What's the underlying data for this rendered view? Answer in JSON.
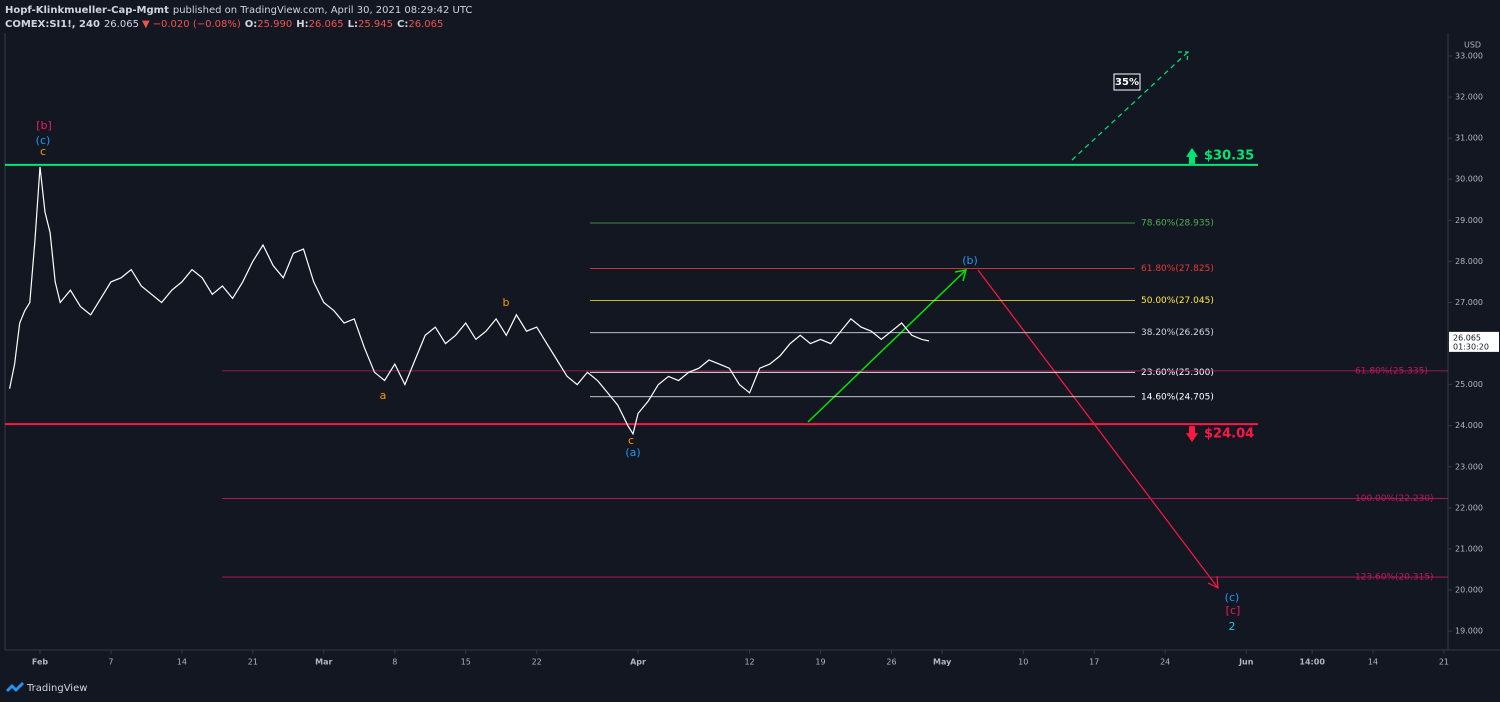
{
  "header": {
    "author": "Hopf-Klinkmueller-Cap-Mgmt",
    "published": "published on TradingView.com, April 30, 2021 08:29:42 UTC",
    "symbol": "COMEX:SI1!, 240",
    "last": "26.065",
    "direction": "▼",
    "change": "−0.020 (−0.08%)",
    "ohlc": [
      {
        "key": "O:",
        "value": "25.990"
      },
      {
        "key": "H:",
        "value": "26.065"
      },
      {
        "key": "L:",
        "value": "25.945"
      },
      {
        "key": "C:",
        "value": "26.065"
      }
    ]
  },
  "chart_data": {
    "type": "line",
    "currency": "USD",
    "color": "#ffffff",
    "x": [
      -3,
      -2.5,
      -2,
      -1.5,
      -1,
      -0.5,
      0,
      0.5,
      1,
      1.5,
      2,
      3,
      4,
      5,
      6,
      7,
      8,
      9,
      10,
      11,
      12,
      13,
      14,
      15,
      16,
      17,
      18,
      19,
      20,
      21,
      22,
      23,
      24,
      25,
      26,
      27,
      28,
      29,
      30,
      31,
      32,
      33,
      34,
      35,
      36,
      37,
      38,
      39,
      40,
      41,
      42,
      43,
      44,
      45,
      46,
      47,
      48,
      49,
      50,
      51,
      52,
      53,
      54,
      55,
      56,
      57,
      58,
      58.5,
      59,
      60,
      61,
      62,
      63,
      64,
      65,
      66,
      67,
      68,
      69,
      70,
      71,
      72,
      73,
      74,
      75,
      76,
      77,
      78,
      79,
      80,
      81,
      82,
      83,
      84,
      85,
      86,
      87,
      87.7
    ],
    "values": [
      24.9,
      25.5,
      26.5,
      26.8,
      27.0,
      28.5,
      30.3,
      29.2,
      28.7,
      27.5,
      27.0,
      27.3,
      26.9,
      26.7,
      27.1,
      27.5,
      27.6,
      27.8,
      27.4,
      27.2,
      27.0,
      27.3,
      27.5,
      27.8,
      27.6,
      27.2,
      27.4,
      27.1,
      27.5,
      28.0,
      28.4,
      27.9,
      27.6,
      28.2,
      28.3,
      27.5,
      27.0,
      26.8,
      26.5,
      26.6,
      25.9,
      25.3,
      25.1,
      25.5,
      25.0,
      25.6,
      26.2,
      26.4,
      26.0,
      26.2,
      26.5,
      26.1,
      26.3,
      26.6,
      26.2,
      26.7,
      26.3,
      26.4,
      26.0,
      25.6,
      25.2,
      25.0,
      25.3,
      25.1,
      24.8,
      24.5,
      24.0,
      23.8,
      24.3,
      24.6,
      25.0,
      25.2,
      25.1,
      25.3,
      25.4,
      25.6,
      25.5,
      25.4,
      25.0,
      24.8,
      25.4,
      25.5,
      25.7,
      26.0,
      26.2,
      26.0,
      26.1,
      26.0,
      26.3,
      26.6,
      26.4,
      26.3,
      26.1,
      26.3,
      26.5,
      26.2,
      26.1,
      26.065
    ],
    "xlim": [
      -3.45,
      138.9
    ],
    "ylim": [
      18.54,
      33.56
    ],
    "xticks": [
      {
        "value": 0,
        "label": "Feb"
      },
      7,
      14,
      21,
      {
        "value": 28,
        "label": "Mar"
      },
      {
        "value": 35,
        "label": "8"
      },
      {
        "value": 42,
        "label": "15"
      },
      {
        "value": 49,
        "label": "22"
      },
      {
        "value": 59,
        "label": "Apr"
      },
      {
        "value": 70,
        "label": "12"
      },
      {
        "value": 77,
        "label": "19"
      },
      {
        "value": 84,
        "label": "26"
      },
      {
        "value": 89,
        "label": "May"
      },
      {
        "value": 97,
        "label": "10"
      },
      {
        "value": 104,
        "label": "17"
      },
      {
        "value": 111,
        "label": "24"
      },
      {
        "value": 119,
        "label": "Jun"
      },
      {
        "value": 125.5,
        "label": "14:00"
      },
      {
        "value": 131.5,
        "label": "14"
      },
      {
        "value": 138.5,
        "label": "21"
      }
    ],
    "yticks": [
      {
        "value": 19,
        "label": "19.000"
      },
      {
        "value": 20,
        "label": "20.000"
      },
      {
        "value": 21,
        "label": "21.000"
      },
      {
        "value": 22,
        "label": "22.000"
      },
      {
        "value": 23,
        "label": "23.000"
      },
      {
        "value": 24,
        "label": "24.000"
      },
      {
        "value": 25,
        "label": "25.000"
      },
      {
        "value": 26,
        "label": "26.000"
      },
      {
        "value": 27,
        "label": "27.000"
      },
      {
        "value": 28,
        "label": "28.000"
      },
      {
        "value": 29,
        "label": "29.000"
      },
      {
        "value": 30,
        "label": "30.000"
      },
      {
        "value": 31,
        "label": "31.000"
      },
      {
        "value": 32,
        "label": "32.000"
      },
      {
        "value": 33,
        "label": "33.000"
      }
    ],
    "levels": [
      {
        "value": 28.935,
        "label": "78.60%(28.935)",
        "color": "#4caf50"
      },
      {
        "value": 27.825,
        "label": "61.80%(27.825)",
        "color": "#e53935"
      },
      {
        "value": 27.045,
        "label": "50.00%(27.045)",
        "color": "#ffeb3b"
      },
      {
        "value": 26.265,
        "label": "38.20%(26.265)",
        "color": "#d1d4dc"
      },
      {
        "value": 25.3,
        "label": "23.60%(25.300)",
        "color": "#ffffff"
      },
      {
        "value": 24.705,
        "label": "14.60%(24.705)",
        "color": "#ffffff"
      },
      {
        "value": 25.335,
        "label": "61.80%(25.335)",
        "color": "#c2185b"
      },
      {
        "value": 22.23,
        "label": "100.00%(22.230)",
        "color": "#c2185b"
      },
      {
        "value": 20.315,
        "label": "123.60%(20.315)",
        "color": "#c2185b"
      }
    ],
    "key_levels": [
      {
        "value": 30.35,
        "label": "$30.35",
        "color": "#00e676"
      },
      {
        "value": 24.04,
        "label": "$24.04",
        "color": "#ff1744"
      }
    ],
    "annotations": [
      {
        "text": "[b]",
        "color": "#e91e63"
      },
      {
        "text": "(c)",
        "color": "#2196f3"
      },
      {
        "text": "c",
        "color": "#ff9800"
      },
      {
        "text": "a",
        "color": "#ff9800"
      },
      {
        "text": "b",
        "color": "#ff9800"
      },
      {
        "text": "c",
        "color": "#ff9800"
      },
      {
        "text": "(a)",
        "color": "#2196f3"
      },
      {
        "text": "(b)",
        "color": "#2196f3"
      },
      {
        "text": "(c)",
        "color": "#2196f3"
      },
      {
        "text": "[c]",
        "color": "#e91e63"
      },
      {
        "text": "2",
        "color": "#26c6da"
      },
      {
        "text": "35%",
        "color": "#ffffff"
      }
    ],
    "price_tag": 26.065,
    "countdown": "01:30:20"
  },
  "footer": {
    "brand": "TradingView"
  }
}
